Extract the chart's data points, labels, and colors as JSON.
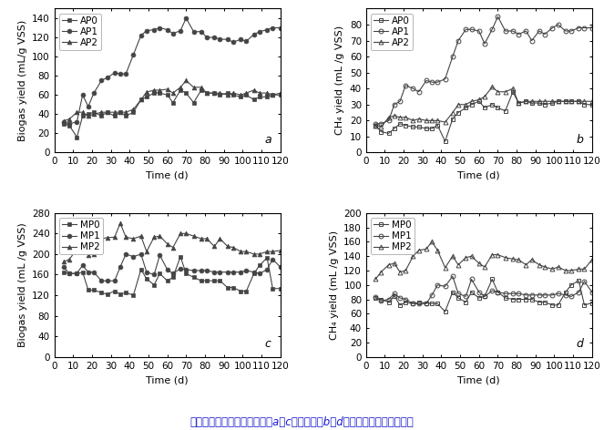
{
  "panel_a": {
    "label": "a",
    "ylabel": "Biogas yield (mL/g VSS)",
    "xlabel": "Time (d)",
    "ylim": [
      0,
      150
    ],
    "yticks": [
      0,
      20,
      40,
      60,
      80,
      100,
      120,
      140
    ],
    "xlim": [
      0,
      120
    ],
    "xticks": [
      0,
      10,
      20,
      30,
      40,
      50,
      60,
      70,
      80,
      90,
      100,
      110,
      120
    ],
    "open_markers": false,
    "series": {
      "AP0": {
        "x": [
          5,
          8,
          12,
          15,
          18,
          21,
          25,
          28,
          32,
          35,
          38,
          42,
          46,
          49,
          53,
          56,
          60,
          63,
          67,
          70,
          74,
          78,
          81,
          85,
          88,
          92,
          95,
          99,
          102,
          106,
          109,
          113,
          116,
          120
        ],
        "y": [
          30,
          28,
          16,
          38,
          40,
          42,
          38,
          42,
          38,
          42,
          38,
          42,
          55,
          58,
          62,
          62,
          60,
          52,
          65,
          62,
          52,
          65,
          62,
          62,
          60,
          62,
          60,
          58,
          60,
          55,
          58,
          58,
          60,
          60
        ],
        "marker": "s"
      },
      "AP1": {
        "x": [
          5,
          8,
          12,
          15,
          18,
          21,
          25,
          28,
          32,
          35,
          38,
          42,
          46,
          49,
          53,
          56,
          60,
          63,
          67,
          70,
          74,
          78,
          81,
          85,
          88,
          92,
          95,
          99,
          102,
          106,
          109,
          113,
          116,
          120
        ],
        "y": [
          32,
          30,
          32,
          60,
          48,
          62,
          75,
          78,
          83,
          82,
          82,
          102,
          122,
          127,
          128,
          130,
          128,
          124,
          127,
          140,
          126,
          126,
          120,
          120,
          118,
          118,
          115,
          118,
          116,
          123,
          126,
          128,
          130,
          130
        ],
        "marker": "o"
      },
      "AP2": {
        "x": [
          5,
          8,
          12,
          15,
          18,
          21,
          25,
          28,
          32,
          35,
          38,
          42,
          46,
          49,
          53,
          56,
          60,
          63,
          67,
          70,
          74,
          78,
          81,
          85,
          88,
          92,
          95,
          99,
          102,
          106,
          109,
          113,
          116,
          120
        ],
        "y": [
          33,
          35,
          42,
          42,
          38,
          40,
          42,
          42,
          42,
          42,
          42,
          45,
          55,
          63,
          65,
          65,
          66,
          62,
          68,
          75,
          68,
          68,
          62,
          62,
          62,
          60,
          62,
          60,
          62,
          65,
          62,
          62,
          60,
          62
        ],
        "marker": "^"
      }
    }
  },
  "panel_b": {
    "label": "b",
    "ylabel": "CH₄ yield (mL /g VSS)",
    "xlabel": "Time (d)",
    "ylim": [
      0,
      90
    ],
    "yticks": [
      0,
      10,
      20,
      30,
      40,
      50,
      60,
      70,
      80
    ],
    "xlim": [
      0,
      120
    ],
    "xticks": [
      0,
      10,
      20,
      30,
      40,
      50,
      60,
      70,
      80,
      90,
      100,
      110,
      120
    ],
    "open_markers": true,
    "series": {
      "AP0": {
        "x": [
          5,
          8,
          12,
          15,
          18,
          21,
          25,
          28,
          32,
          35,
          38,
          42,
          46,
          49,
          53,
          56,
          60,
          63,
          67,
          70,
          74,
          78,
          81,
          85,
          88,
          92,
          95,
          99,
          102,
          106,
          109,
          113,
          116,
          120
        ],
        "y": [
          17,
          13,
          12,
          15,
          18,
          17,
          16,
          16,
          15,
          15,
          17,
          7,
          21,
          25,
          28,
          30,
          32,
          28,
          30,
          28,
          26,
          38,
          31,
          32,
          31,
          31,
          30,
          31,
          32,
          32,
          32,
          32,
          30,
          30
        ],
        "marker": "s"
      },
      "AP1": {
        "x": [
          5,
          8,
          12,
          15,
          18,
          21,
          25,
          28,
          32,
          35,
          38,
          42,
          46,
          49,
          53,
          56,
          60,
          63,
          67,
          70,
          74,
          78,
          81,
          85,
          88,
          92,
          95,
          99,
          102,
          106,
          109,
          113,
          116,
          120
        ],
        "y": [
          18,
          18,
          20,
          30,
          32,
          42,
          40,
          38,
          45,
          44,
          44,
          46,
          60,
          70,
          77,
          77,
          76,
          68,
          77,
          85,
          76,
          76,
          74,
          76,
          70,
          76,
          74,
          78,
          80,
          76,
          76,
          78,
          78,
          78
        ],
        "marker": "o"
      },
      "AP2": {
        "x": [
          5,
          8,
          12,
          15,
          18,
          21,
          25,
          28,
          32,
          35,
          38,
          42,
          46,
          49,
          53,
          56,
          60,
          63,
          67,
          70,
          74,
          78,
          81,
          85,
          88,
          92,
          95,
          99,
          102,
          106,
          109,
          113,
          116,
          120
        ],
        "y": [
          17,
          16,
          22,
          23,
          22,
          22,
          20,
          21,
          20,
          20,
          20,
          19,
          25,
          30,
          30,
          32,
          33,
          35,
          41,
          38,
          38,
          40,
          31,
          32,
          32,
          32,
          32,
          32,
          32,
          32,
          32,
          32,
          32,
          32
        ],
        "marker": "^"
      }
    }
  },
  "panel_c": {
    "label": "c",
    "ylabel": "Biogas yield (mL /g VSS)",
    "xlabel": "Time (d)",
    "ylim": [
      0,
      280
    ],
    "yticks": [
      0,
      40,
      80,
      120,
      160,
      200,
      240,
      280
    ],
    "xlim": [
      0,
      120
    ],
    "xticks": [
      0,
      10,
      20,
      30,
      40,
      50,
      60,
      70,
      80,
      90,
      100,
      110,
      120
    ],
    "open_markers": false,
    "series": {
      "MP0": {
        "x": [
          5,
          8,
          12,
          15,
          18,
          21,
          25,
          28,
          32,
          35,
          38,
          42,
          46,
          49,
          53,
          56,
          60,
          63,
          67,
          70,
          74,
          78,
          81,
          85,
          88,
          92,
          95,
          99,
          102,
          106,
          109,
          113,
          116,
          120
        ],
        "y": [
          165,
          162,
          162,
          165,
          130,
          130,
          125,
          122,
          128,
          122,
          125,
          120,
          170,
          152,
          140,
          162,
          148,
          155,
          195,
          162,
          155,
          148,
          148,
          148,
          148,
          135,
          135,
          128,
          128,
          162,
          178,
          193,
          133,
          133
        ],
        "marker": "s"
      },
      "MP1": {
        "x": [
          5,
          8,
          12,
          15,
          18,
          21,
          25,
          28,
          32,
          35,
          38,
          42,
          46,
          49,
          53,
          56,
          60,
          63,
          67,
          70,
          74,
          78,
          81,
          85,
          88,
          92,
          95,
          99,
          102,
          106,
          109,
          113,
          116,
          120
        ],
        "y": [
          175,
          162,
          163,
          178,
          165,
          165,
          148,
          148,
          148,
          175,
          200,
          195,
          200,
          165,
          160,
          198,
          170,
          162,
          172,
          170,
          168,
          168,
          168,
          165,
          165,
          165,
          165,
          165,
          168,
          165,
          162,
          170,
          190,
          175
        ],
        "marker": "o"
      },
      "MP2": {
        "x": [
          5,
          8,
          12,
          15,
          18,
          21,
          25,
          28,
          32,
          35,
          38,
          42,
          46,
          49,
          53,
          56,
          60,
          63,
          67,
          70,
          74,
          78,
          81,
          85,
          88,
          92,
          95,
          99,
          102,
          106,
          109,
          113,
          116,
          120
        ],
        "y": [
          185,
          190,
          210,
          210,
          198,
          200,
          230,
          232,
          233,
          260,
          233,
          230,
          235,
          205,
          233,
          235,
          220,
          213,
          240,
          240,
          235,
          230,
          230,
          215,
          230,
          215,
          213,
          205,
          205,
          200,
          200,
          205,
          205,
          207
        ],
        "marker": "^"
      }
    }
  },
  "panel_d": {
    "label": "d",
    "ylabel": "CH₄ yield (mL /g VSS)",
    "xlabel": "Time (d)",
    "ylim": [
      0,
      200
    ],
    "yticks": [
      0,
      20,
      40,
      60,
      80,
      100,
      120,
      140,
      160,
      180,
      200
    ],
    "xlim": [
      0,
      120
    ],
    "xticks": [
      0,
      10,
      20,
      30,
      40,
      50,
      60,
      70,
      80,
      90,
      100,
      110,
      120
    ],
    "open_markers": true,
    "series": {
      "MP0": {
        "x": [
          5,
          8,
          12,
          15,
          18,
          21,
          25,
          28,
          32,
          35,
          38,
          42,
          46,
          49,
          53,
          56,
          60,
          63,
          67,
          70,
          74,
          78,
          81,
          85,
          88,
          92,
          95,
          99,
          102,
          106,
          109,
          113,
          116,
          120
        ],
        "y": [
          82,
          80,
          76,
          85,
          72,
          76,
          74,
          76,
          75,
          74,
          74,
          63,
          90,
          82,
          76,
          90,
          82,
          84,
          108,
          90,
          82,
          80,
          80,
          80,
          80,
          76,
          76,
          72,
          72,
          90,
          100,
          106,
          72,
          75
        ],
        "marker": "s"
      },
      "MP1": {
        "x": [
          5,
          8,
          12,
          15,
          18,
          21,
          25,
          28,
          32,
          35,
          38,
          42,
          46,
          49,
          53,
          56,
          60,
          63,
          67,
          70,
          74,
          78,
          81,
          85,
          88,
          92,
          95,
          99,
          102,
          106,
          109,
          113,
          116,
          120
        ],
        "y": [
          83,
          78,
          80,
          88,
          82,
          80,
          74,
          74,
          74,
          86,
          100,
          98,
          112,
          88,
          84,
          108,
          90,
          84,
          92,
          90,
          88,
          88,
          88,
          86,
          86,
          86,
          86,
          86,
          88,
          86,
          84,
          90,
          105,
          90
        ],
        "marker": "o"
      },
      "MP2": {
        "x": [
          5,
          8,
          12,
          15,
          18,
          21,
          25,
          28,
          32,
          35,
          38,
          42,
          46,
          49,
          53,
          56,
          60,
          63,
          67,
          70,
          74,
          78,
          81,
          85,
          88,
          92,
          95,
          99,
          102,
          106,
          109,
          113,
          116,
          120
        ],
        "y": [
          108,
          118,
          128,
          130,
          118,
          120,
          140,
          148,
          150,
          160,
          148,
          124,
          140,
          128,
          138,
          140,
          130,
          125,
          142,
          142,
          138,
          136,
          135,
          128,
          135,
          128,
          125,
          122,
          125,
          120,
          120,
          122,
          122,
          135
        ],
        "marker": "^"
      }
    }
  },
  "caption": "两相厕氧消化系统中生物量（a、c）和甲烷（b、d）变化（来自文章原图）",
  "line_color": "#444444",
  "marker_size": 3.5,
  "linewidth": 0.8,
  "font_size": 8,
  "label_fontsize": 8,
  "tick_fontsize": 7.5
}
